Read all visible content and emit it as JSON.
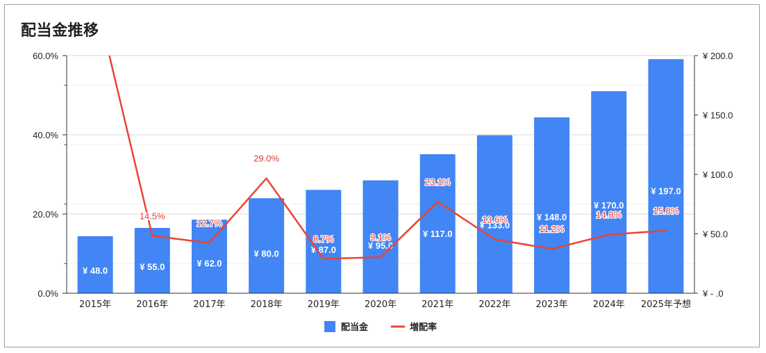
{
  "chart_data": {
    "type": "bar",
    "title": "配当金推移",
    "categories": [
      "2015年",
      "2016年",
      "2017年",
      "2018年",
      "2019年",
      "2020年",
      "2021年",
      "2022年",
      "2023年",
      "2024年",
      "2025年予想"
    ],
    "series": [
      {
        "name": "配当金",
        "kind": "bar",
        "axis": "right",
        "color": "#4285f4",
        "values": [
          48.0,
          55.0,
          62.0,
          80.0,
          87.0,
          95.0,
          117.0,
          133.0,
          148.0,
          170.0,
          197.0
        ],
        "labels": [
          "¥ 48.0",
          "¥ 55.0",
          "¥ 62.0",
          "¥ 80.0",
          "¥ 87.0",
          "¥ 95.0",
          "¥ 117.0",
          "¥ 133.0",
          "¥ 148.0",
          "¥ 170.0",
          "¥ 197.0"
        ]
      },
      {
        "name": "増配率",
        "kind": "line",
        "axis": "left",
        "color": "#ea4335",
        "values": [
          75.0,
          14.5,
          12.7,
          29.0,
          8.7,
          9.1,
          23.1,
          13.6,
          11.2,
          14.8,
          15.8
        ],
        "labels": [
          "",
          "14.5%",
          "12.7%",
          "29.0%",
          "8.7%",
          "9.1%",
          "23.1%",
          "13.6%",
          "11.2%",
          "14.8%",
          "15.8%"
        ]
      }
    ],
    "left_axis": {
      "ylim": [
        0,
        60
      ],
      "ticks": [
        "0.0%",
        "20.0%",
        "40.0%",
        "60.0%"
      ]
    },
    "right_axis": {
      "ylim": [
        0,
        200
      ],
      "ticks": [
        "¥ - .0",
        "¥ 50.0",
        "¥ 100.0",
        "¥ 150.0",
        "¥ 200.0"
      ]
    },
    "xlabel": "",
    "ylabel": "",
    "grid": true,
    "legend": "bottom"
  }
}
